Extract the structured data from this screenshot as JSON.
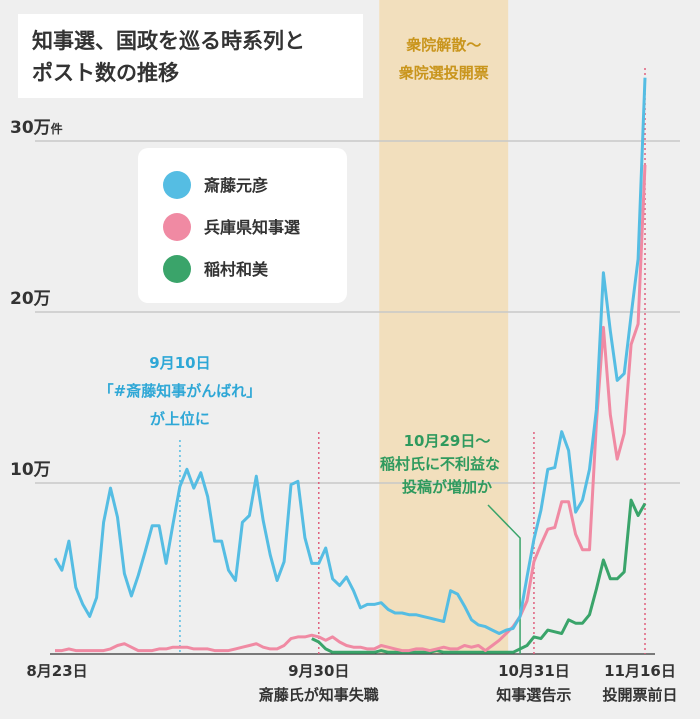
{
  "chart_data": {
    "type": "line",
    "title": "知事選、国政を巡る時系列とポスト数の推移",
    "title_lines": [
      "知事選、国政を巡る時系列と",
      "ポスト数の推移"
    ],
    "x_start": "8月23日",
    "x_end": "11月16日",
    "x_ticks": [
      {
        "date": "8月23日",
        "index": 0,
        "label": "8月23日",
        "sub": ""
      },
      {
        "date": "9月30日",
        "index": 38,
        "label": "9月30日",
        "sub": "斎藤氏が知事失職"
      },
      {
        "date": "10月31日",
        "index": 69,
        "label": "10月31日",
        "sub": "知事選告示"
      },
      {
        "date": "11月16日",
        "index": 85,
        "label": "11月16日",
        "sub": "投開票前日"
      }
    ],
    "y_unit": "万",
    "ylim": [
      0,
      35
    ],
    "y_ticks": [
      {
        "value": 10,
        "label": "10万",
        "suffix": ""
      },
      {
        "value": 20,
        "label": "20万",
        "suffix": ""
      },
      {
        "value": 30,
        "label": "30万",
        "suffix": "件"
      }
    ],
    "grid": true,
    "legend_placement": "top-left",
    "series": [
      {
        "name": "斎藤元彦",
        "color": "#55bde3",
        "values": [
          5.6,
          4.9,
          6.6,
          3.9,
          2.9,
          2.2,
          3.3,
          7.7,
          9.7,
          8.0,
          4.7,
          3.4,
          4.6,
          6.0,
          7.5,
          7.5,
          5.3,
          7.6,
          9.8,
          10.8,
          9.7,
          10.6,
          9.2,
          6.6,
          6.6,
          4.9,
          4.3,
          7.7,
          8.1,
          10.4,
          7.8,
          5.8,
          4.3,
          5.4,
          9.9,
          10.1,
          6.8,
          5.3,
          5.3,
          6.2,
          4.4,
          4.0,
          4.5,
          3.7,
          2.7,
          2.9,
          2.9,
          3.0,
          2.6,
          2.4,
          2.4,
          2.3,
          2.3,
          2.2,
          2.1,
          2.0,
          1.9,
          3.7,
          3.5,
          2.8,
          2.0,
          1.7,
          1.6,
          1.4,
          1.2,
          1.4,
          1.5,
          2.2,
          4.5,
          6.7,
          8.4,
          10.8,
          10.9,
          13.0,
          11.9,
          8.3,
          9.0,
          10.8,
          14.3,
          22.3,
          18.9,
          16.0,
          16.4,
          19.8,
          23.1,
          33.7
        ]
      },
      {
        "name": "兵庫県知事選",
        "color": "#f08aa3",
        "values": [
          0.2,
          0.2,
          0.3,
          0.2,
          0.2,
          0.2,
          0.2,
          0.2,
          0.3,
          0.5,
          0.6,
          0.4,
          0.2,
          0.2,
          0.2,
          0.3,
          0.3,
          0.4,
          0.4,
          0.4,
          0.3,
          0.3,
          0.3,
          0.2,
          0.2,
          0.2,
          0.3,
          0.4,
          0.5,
          0.6,
          0.4,
          0.3,
          0.3,
          0.5,
          0.9,
          1.0,
          1.0,
          1.1,
          1.0,
          0.8,
          1.0,
          0.7,
          0.5,
          0.4,
          0.4,
          0.3,
          0.3,
          0.5,
          0.4,
          0.3,
          0.2,
          0.2,
          0.3,
          0.3,
          0.2,
          0.3,
          0.4,
          0.3,
          0.3,
          0.5,
          0.4,
          0.5,
          0.2,
          0.5,
          0.8,
          1.2,
          1.6,
          2.2,
          3.1,
          5.4,
          6.4,
          7.3,
          7.4,
          8.9,
          8.9,
          7.0,
          6.1,
          6.1,
          13.5,
          19.1,
          14.0,
          11.4,
          12.9,
          18.1,
          19.3,
          28.6
        ]
      },
      {
        "name": "稲村和美",
        "color": "#3aa46a",
        "values": [
          null,
          null,
          null,
          null,
          null,
          null,
          null,
          null,
          null,
          null,
          null,
          null,
          null,
          null,
          null,
          null,
          null,
          null,
          null,
          null,
          null,
          null,
          null,
          null,
          null,
          null,
          null,
          null,
          null,
          null,
          null,
          null,
          null,
          null,
          null,
          null,
          null,
          0.9,
          0.7,
          0.3,
          0.1,
          0.1,
          0.1,
          0.1,
          0.1,
          0.1,
          0.1,
          0.2,
          0.1,
          0.1,
          0.1,
          0.1,
          0.1,
          0.1,
          0.1,
          0.2,
          0.1,
          0.1,
          0.1,
          0.1,
          0.1,
          0.1,
          0.1,
          0.1,
          0.1,
          0.1,
          0.1,
          0.3,
          0.5,
          1.0,
          0.9,
          1.4,
          1.3,
          1.2,
          2.0,
          1.8,
          1.8,
          2.3,
          3.8,
          5.5,
          4.4,
          4.4,
          4.8,
          9.0,
          8.1,
          8.8
        ]
      }
    ],
    "shaded_period": {
      "start_index": 47,
      "end_index": 65,
      "label_lines": [
        "衆院解散～",
        "衆院選投開票"
      ],
      "color": "#f2dfbd",
      "label_color": "#c9951c"
    },
    "markers": [
      {
        "index": 18,
        "color": "#55bde3",
        "label_lines": [
          "9月10日",
          "「#斎藤知事がんばれ」",
          "が上位に"
        ]
      },
      {
        "index": 38,
        "color": "#e0607e",
        "label_lines": []
      },
      {
        "index": 69,
        "color": "#e0607e",
        "label_lines": []
      },
      {
        "index": 85,
        "color": "#e0607e",
        "label_lines": []
      }
    ],
    "callout": {
      "index": 67,
      "color": "#3aa46a",
      "label_lines": [
        "10月29日～",
        "稲村氏に不利益な",
        "投稿が増加か"
      ]
    }
  }
}
